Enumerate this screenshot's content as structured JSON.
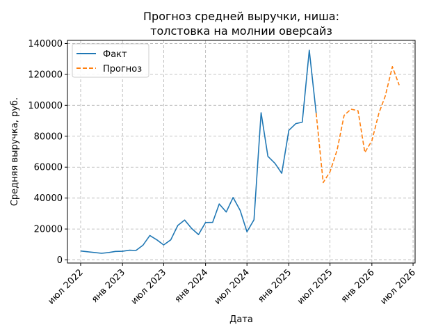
{
  "chart_data": {
    "type": "line",
    "title": [
      "Прогноз средней выручки, ниша:",
      "толстовка на молнии оверсайз"
    ],
    "xlabel": "Дата",
    "ylabel": "Средняя выручка, руб.",
    "x_ticks": [
      {
        "label": "июл 2022",
        "date": "2022-07-01"
      },
      {
        "label": "янв 2023",
        "date": "2023-01-01"
      },
      {
        "label": "июл 2023",
        "date": "2023-07-01"
      },
      {
        "label": "янв 2024",
        "date": "2024-01-01"
      },
      {
        "label": "июл 2024",
        "date": "2024-07-01"
      },
      {
        "label": "янв 2025",
        "date": "2025-01-01"
      },
      {
        "label": "июл 2025",
        "date": "2025-07-01"
      },
      {
        "label": "янв 2026",
        "date": "2026-01-01"
      },
      {
        "label": "июл 2026",
        "date": "2026-07-01"
      }
    ],
    "xlim": [
      "2022-05-04",
      "2026-07-10"
    ],
    "y_ticks": [
      0,
      20000,
      40000,
      60000,
      80000,
      100000,
      120000,
      140000
    ],
    "y_tick_labels": [
      "0",
      "20000",
      "40000",
      "60000",
      "80000",
      "100000",
      "120000",
      "140000"
    ],
    "ylim": [
      -2000,
      142000
    ],
    "grid": true,
    "legend_position": "top-left",
    "series": [
      {
        "name": "Факт",
        "color": "#1f77b4",
        "style": "solid",
        "x": [
          "2022-07-01",
          "2022-08-01",
          "2022-09-01",
          "2022-10-01",
          "2022-11-01",
          "2022-12-01",
          "2023-01-01",
          "2023-02-01",
          "2023-03-01",
          "2023-04-01",
          "2023-05-01",
          "2023-06-01",
          "2023-07-01",
          "2023-08-01",
          "2023-09-01",
          "2023-10-01",
          "2023-11-01",
          "2023-12-01",
          "2024-01-01",
          "2024-02-01",
          "2024-03-01",
          "2024-04-01",
          "2024-05-01",
          "2024-06-01",
          "2024-07-01",
          "2024-08-01",
          "2024-09-01",
          "2024-10-01",
          "2024-11-01",
          "2024-12-01",
          "2025-01-01",
          "2025-02-01",
          "2025-03-01",
          "2025-04-01",
          "2025-05-01"
        ],
        "y": [
          5800,
          5300,
          4800,
          4300,
          4800,
          5500,
          5600,
          6300,
          6100,
          9500,
          15800,
          13000,
          9700,
          13000,
          22300,
          25800,
          20300,
          16400,
          24200,
          24300,
          36200,
          31000,
          40400,
          32000,
          18200,
          26000,
          95200,
          67000,
          62500,
          56000,
          83800,
          88200,
          89100,
          135600,
          95000
        ]
      },
      {
        "name": "Прогноз",
        "color": "#ff7f0e",
        "style": "dashed",
        "x": [
          "2025-05-01",
          "2025-06-01",
          "2025-07-01",
          "2025-08-01",
          "2025-09-01",
          "2025-10-01",
          "2025-11-01",
          "2025-12-01",
          "2026-01-01",
          "2026-02-01",
          "2026-03-01",
          "2026-04-01",
          "2026-05-01"
        ],
        "y": [
          95000,
          50000,
          57000,
          71000,
          93500,
          97500,
          96500,
          69500,
          77000,
          95000,
          106000,
          125000,
          113000
        ]
      }
    ]
  }
}
